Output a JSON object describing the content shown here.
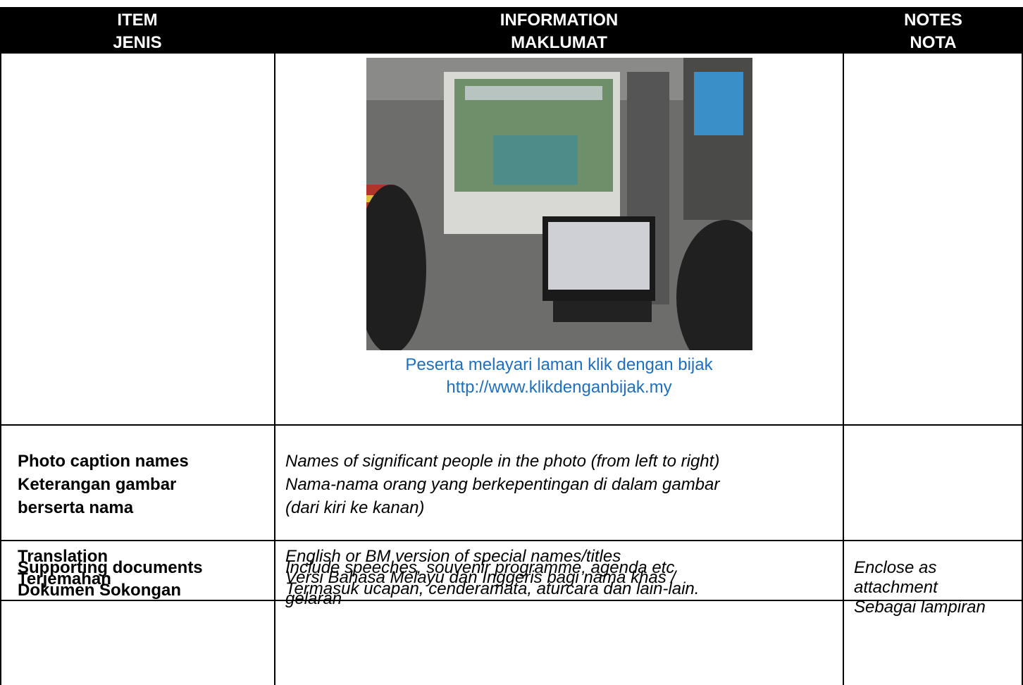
{
  "header": {
    "cells": [
      {
        "lines": [
          "ITEM",
          "JENIS"
        ]
      },
      {
        "lines": [
          "INFORMATION",
          "MAKLUMAT"
        ]
      },
      {
        "lines": [
          "NOTES",
          "NOTA"
        ]
      }
    ]
  },
  "photo_row": {
    "caption": [
      "Peserta melayari laman klik dengan bijak",
      "http://www.klikdenganbijak.my"
    ]
  },
  "rows": [
    {
      "item": [
        "Photo caption names",
        "Keterangan gambar",
        "berserta nama"
      ],
      "info": [
        "Names of significant people in the photo (from left to right)",
        "Nama-nama orang yang berkepentingan di dalam gambar",
        "(dari kiri ke kanan)"
      ]
    },
    {
      "item": [
        "Translation",
        "Terjemahan"
      ],
      "info": [
        "English or BM version of special names/titles",
        "Versi Bahasa Melayu dan Inggeris bagi nama khas /",
        "gelaran"
      ]
    },
    {
      "item": [
        "Supporting documents",
        "Dokumen Sokongan"
      ],
      "info": [
        "Include speeches, souvenir programme, agenda etc",
        "Termasuk ucapan, cenderamata, aturcara dan lain-lain."
      ],
      "notes": [
        "Enclose as",
        "attachment",
        "Sebagai lampiran"
      ]
    }
  ]
}
